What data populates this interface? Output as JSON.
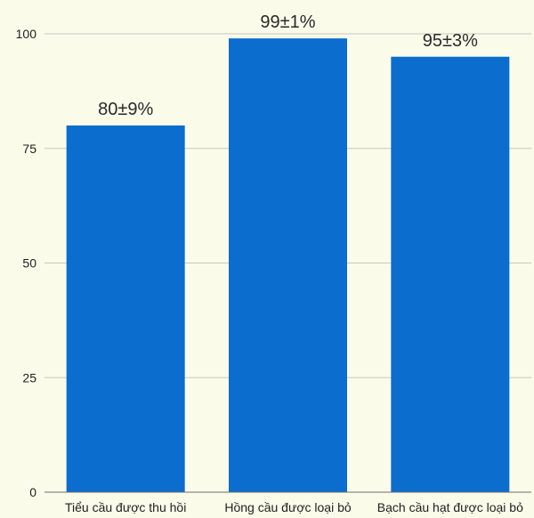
{
  "chart_data": {
    "type": "bar",
    "categories": [
      "Tiểu cầu được thu hồi",
      "Hồng cầu được loại bỏ",
      "Bạch cầu hạt được loại bỏ"
    ],
    "values": [
      80,
      99,
      95
    ],
    "data_labels": [
      "80±9%",
      "99±1%",
      "95±3%"
    ],
    "ylim": [
      0,
      100
    ],
    "yticks": [
      0,
      25,
      50,
      75,
      100
    ],
    "grid": true,
    "legend": "none",
    "bar_color": "#0b6dcd",
    "background_color": "#fbfbea"
  }
}
